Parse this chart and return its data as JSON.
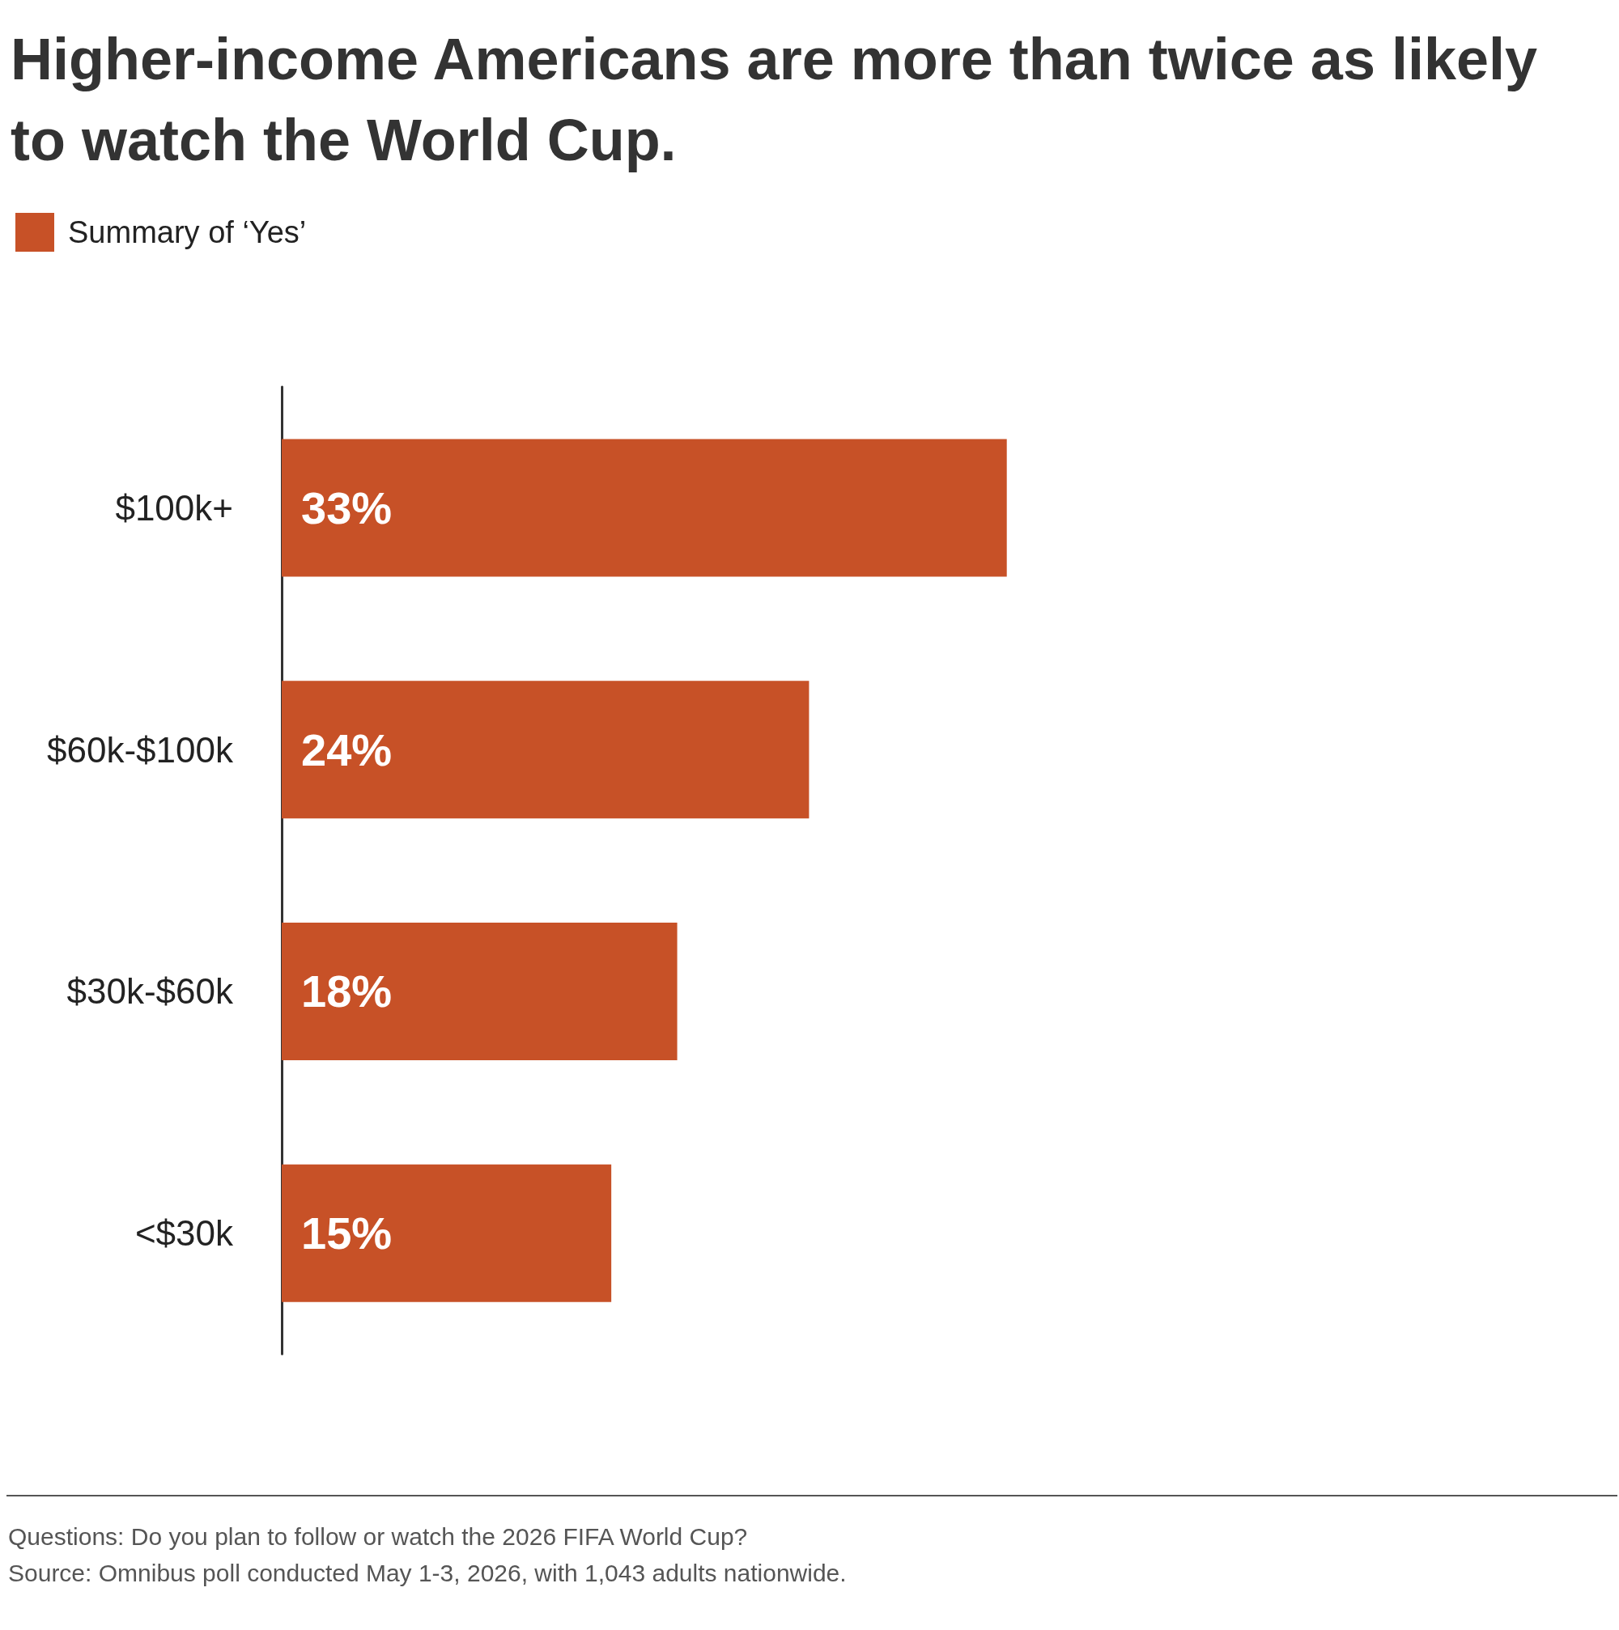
{
  "chart_data": {
    "type": "bar",
    "orientation": "horizontal",
    "title": "Higher-income Americans are more than twice as likely to watch the World Cup.",
    "categories": [
      "$100k+",
      "$60k-$100k",
      "$30k-$60k",
      "<$30k"
    ],
    "series": [
      {
        "name": "Summary of ‘Yes’",
        "color": "#c75127",
        "values": [
          33,
          24,
          18,
          15
        ],
        "value_labels": [
          "33%",
          "24%",
          "18%",
          "15%"
        ]
      }
    ],
    "legend": "top left",
    "annotations": [
      "Questions: Do you plan to follow or watch the 2026 FIFA World Cup?",
      "Source: Omnibus poll conducted May 1-3, 2026, with 1,043 adults nationwide."
    ]
  }
}
